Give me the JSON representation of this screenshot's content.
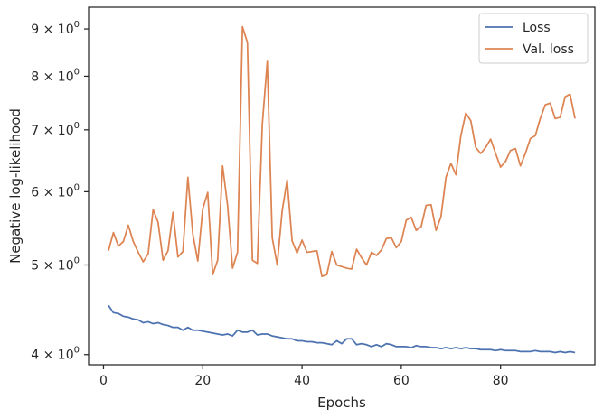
{
  "chart_data": {
    "type": "line",
    "title": "",
    "xlabel": "Epochs",
    "ylabel": "Negative log-likelihood",
    "xlim": [
      -3,
      99
    ],
    "ylim": [
      3.9,
      9.5
    ],
    "yscale": "log",
    "grid": false,
    "legend_position": "top-right",
    "x_ticks": [
      0,
      20,
      40,
      60,
      80
    ],
    "x_tick_labels": [
      "0",
      "20",
      "40",
      "60",
      "80"
    ],
    "y_ticks": [
      4,
      5,
      6,
      7,
      8,
      9
    ],
    "y_tick_labels": [
      "4 × 10",
      "5 × 10",
      "6 × 10",
      "7 × 10",
      "8 × 10",
      "9 × 10"
    ],
    "y_tick_exponent": "0",
    "series": [
      {
        "name": "Loss",
        "color": "#4c72b0",
        "x": [
          1,
          2,
          3,
          4,
          5,
          6,
          7,
          8,
          9,
          10,
          11,
          12,
          13,
          14,
          15,
          16,
          17,
          18,
          19,
          20,
          21,
          22,
          23,
          24,
          25,
          26,
          27,
          28,
          29,
          30,
          31,
          32,
          33,
          34,
          35,
          36,
          37,
          38,
          39,
          40,
          41,
          42,
          43,
          44,
          45,
          46,
          47,
          48,
          49,
          50,
          51,
          52,
          53,
          54,
          55,
          56,
          57,
          58,
          59,
          60,
          61,
          62,
          63,
          64,
          65,
          66,
          67,
          68,
          69,
          70,
          71,
          72,
          73,
          74,
          75,
          76,
          77,
          78,
          79,
          80,
          81,
          82,
          83,
          84,
          85,
          86,
          87,
          88,
          89,
          90,
          91,
          92,
          93,
          94,
          95
        ],
        "values": [
          4.52,
          4.44,
          4.43,
          4.4,
          4.39,
          4.37,
          4.36,
          4.33,
          4.34,
          4.32,
          4.33,
          4.31,
          4.3,
          4.28,
          4.28,
          4.25,
          4.28,
          4.25,
          4.25,
          4.24,
          4.23,
          4.22,
          4.21,
          4.2,
          4.21,
          4.19,
          4.25,
          4.23,
          4.23,
          4.25,
          4.2,
          4.21,
          4.21,
          4.19,
          4.18,
          4.17,
          4.16,
          4.16,
          4.14,
          4.14,
          4.13,
          4.13,
          4.12,
          4.12,
          4.11,
          4.1,
          4.14,
          4.11,
          4.16,
          4.16,
          4.1,
          4.11,
          4.1,
          4.08,
          4.1,
          4.08,
          4.11,
          4.1,
          4.08,
          4.08,
          4.08,
          4.07,
          4.09,
          4.08,
          4.08,
          4.07,
          4.07,
          4.06,
          4.07,
          4.06,
          4.07,
          4.06,
          4.07,
          4.06,
          4.06,
          4.05,
          4.05,
          4.05,
          4.04,
          4.05,
          4.04,
          4.04,
          4.04,
          4.03,
          4.03,
          4.03,
          4.04,
          4.03,
          4.03,
          4.03,
          4.02,
          4.03,
          4.02,
          4.03,
          4.02
        ]
      },
      {
        "name": "Val. loss",
        "color": "#dd8452",
        "x": [
          1,
          2,
          3,
          4,
          5,
          6,
          7,
          8,
          9,
          10,
          11,
          12,
          13,
          14,
          15,
          16,
          17,
          18,
          19,
          20,
          21,
          22,
          23,
          24,
          25,
          26,
          27,
          28,
          29,
          30,
          31,
          32,
          33,
          34,
          35,
          36,
          37,
          38,
          39,
          40,
          41,
          42,
          43,
          44,
          45,
          46,
          47,
          48,
          49,
          50,
          51,
          52,
          53,
          54,
          55,
          56,
          57,
          58,
          59,
          60,
          61,
          62,
          63,
          64,
          65,
          66,
          67,
          68,
          69,
          70,
          71,
          72,
          73,
          74,
          75,
          76,
          77,
          78,
          79,
          80,
          81,
          82,
          83,
          84,
          85,
          86,
          87,
          88,
          89,
          90,
          91,
          92,
          93,
          94,
          95
        ],
        "values": [
          5.18,
          5.42,
          5.24,
          5.3,
          5.52,
          5.3,
          5.16,
          5.04,
          5.14,
          5.74,
          5.56,
          5.06,
          5.18,
          5.7,
          5.1,
          5.17,
          6.22,
          5.4,
          5.05,
          5.75,
          5.99,
          4.88,
          5.06,
          6.4,
          5.8,
          4.96,
          5.16,
          9.05,
          8.7,
          5.06,
          5.02,
          7.1,
          8.3,
          5.35,
          5.0,
          5.72,
          6.18,
          5.31,
          5.15,
          5.32,
          5.16,
          5.17,
          5.18,
          4.86,
          4.88,
          5.17,
          5.0,
          4.98,
          4.96,
          4.95,
          5.2,
          5.09,
          5.0,
          5.16,
          5.12,
          5.19,
          5.34,
          5.35,
          5.22,
          5.3,
          5.59,
          5.63,
          5.45,
          5.5,
          5.8,
          5.81,
          5.45,
          5.64,
          6.22,
          6.44,
          6.26,
          6.9,
          7.3,
          7.16,
          6.7,
          6.6,
          6.7,
          6.84,
          6.6,
          6.38,
          6.47,
          6.65,
          6.68,
          6.4,
          6.6,
          6.85,
          6.9,
          7.2,
          7.45,
          7.48,
          7.2,
          7.22,
          7.6,
          7.65,
          7.2
        ]
      }
    ]
  }
}
